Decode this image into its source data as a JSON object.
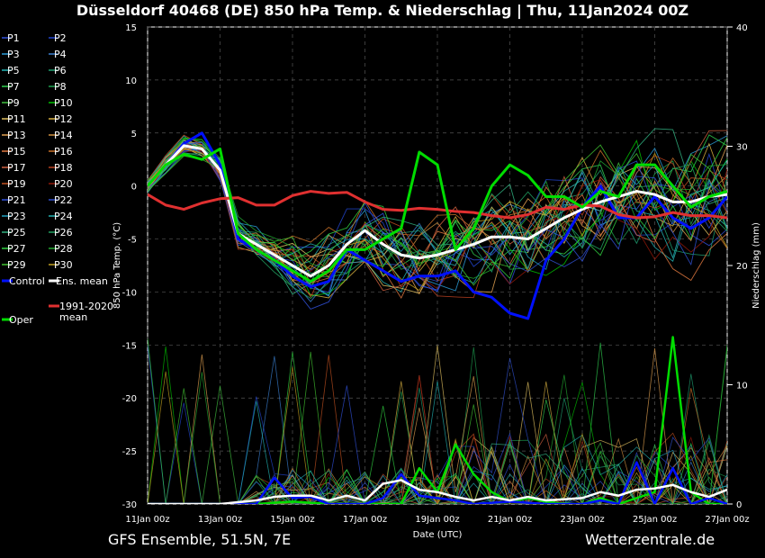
{
  "title": "Düsseldorf 40468 (DE)  850 hPa Temp. & Niederschlag | Thu, 11Jan2024 00Z",
  "footer_left": "GFS Ensemble, 51.5N, 7E",
  "footer_right": "Wetterzentrale.de",
  "colors": {
    "control": "#0010ff",
    "mean": "#ffffff",
    "clim": "#e03030",
    "oper": "#00dd00",
    "grid": "#555555"
  },
  "chart_data": {
    "type": "line",
    "title": "Düsseldorf 40468 (DE)  850 hPa Temp. & Niederschlag | Thu, 11Jan2024 00Z",
    "xlabel": "Date (UTC)",
    "ylabel": "850 hPa Temp. (°C)",
    "y2label": "Niederschlag (mm)",
    "xlim": [
      0,
      16
    ],
    "ylim": [
      -30,
      15
    ],
    "y2lim": [
      0,
      40
    ],
    "grid": true,
    "legend_position": "left",
    "x_ticks": [
      "11Jan 00z",
      "13Jan 00z",
      "15Jan 00z",
      "17Jan 00z",
      "19Jan 00z",
      "21Jan 00z",
      "23Jan 00z",
      "25Jan 00z",
      "27Jan 00z"
    ],
    "y_ticks": [
      "15",
      "10",
      "5",
      "0",
      "-5",
      "-10",
      "-15",
      "-20",
      "-25",
      "-30"
    ],
    "y2_ticks": [
      "40",
      "30",
      "20",
      "10",
      "0"
    ],
    "legend": [
      "P1",
      "P2",
      "P3",
      "P4",
      "P5",
      "P6",
      "P7",
      "P8",
      "P9",
      "P10",
      "P11",
      "P12",
      "P13",
      "P14",
      "P15",
      "P16",
      "P17",
      "P18",
      "P19",
      "P20",
      "P21",
      "P22",
      "P23",
      "P24",
      "P25",
      "P26",
      "P27",
      "P28",
      "P29",
      "P30",
      "Control",
      "Ens. mean",
      "1991-2020 mean",
      "Oper"
    ],
    "series": [
      {
        "name": "Control",
        "axis": "temp",
        "x": [
          0,
          0.5,
          1,
          1.5,
          2,
          2.5,
          3,
          3.5,
          4,
          4.5,
          5,
          5.5,
          6,
          6.5,
          7,
          7.5,
          8,
          8.5,
          9,
          9.5,
          10,
          10.5,
          11,
          11.5,
          12,
          12.5,
          13,
          13.5,
          14,
          14.5,
          15,
          15.5,
          16
        ],
        "values": [
          0,
          2,
          4,
          5,
          2,
          -5,
          -6,
          -7,
          -8.5,
          -9.5,
          -9,
          -6,
          -7,
          -8,
          -9,
          -8.5,
          -8.5,
          -8,
          -10,
          -10.5,
          -12,
          -12.5,
          -7,
          -5,
          -2,
          0,
          -3,
          -3,
          -1,
          -3,
          -4,
          -3,
          -1
        ]
      },
      {
        "name": "Ens. mean",
        "axis": "temp",
        "x": [
          0,
          0.5,
          1,
          1.5,
          2,
          2.5,
          3,
          3.5,
          4,
          4.5,
          5,
          5.5,
          6,
          6.5,
          7,
          7.5,
          8,
          8.5,
          9,
          9.5,
          10,
          10.5,
          11,
          11.5,
          12,
          12.5,
          13,
          13.5,
          14,
          14.5,
          15,
          15.5,
          16
        ],
        "values": [
          0,
          2,
          3.8,
          3.5,
          1.5,
          -4.5,
          -5.5,
          -6.5,
          -7.5,
          -8.5,
          -7.5,
          -5.5,
          -4.2,
          -5.5,
          -6.5,
          -6.8,
          -6.5,
          -6,
          -5.5,
          -4.8,
          -4.8,
          -5,
          -4,
          -3,
          -2.2,
          -1.5,
          -1,
          -0.5,
          -0.8,
          -1.5,
          -1.5,
          -1,
          -0.8
        ]
      },
      {
        "name": "1991-2020 mean",
        "axis": "temp",
        "x": [
          0,
          0.5,
          1,
          1.5,
          2,
          2.5,
          3,
          3.5,
          4,
          4.5,
          5,
          5.5,
          6,
          6.5,
          7,
          7.5,
          8,
          8.5,
          9,
          9.5,
          10,
          10.5,
          11,
          11.5,
          12,
          12.5,
          13,
          13.5,
          14,
          14.5,
          15,
          15.5,
          16
        ],
        "values": [
          -0.8,
          -1.8,
          -2.2,
          -1.6,
          -1.2,
          -1.1,
          -1.8,
          -1.8,
          -0.9,
          -0.5,
          -0.7,
          -0.6,
          -1.5,
          -2.2,
          -2.3,
          -2.1,
          -2.2,
          -2.4,
          -2.5,
          -2.8,
          -3,
          -2.7,
          -2,
          -2.2,
          -1.8,
          -1.9,
          -2.7,
          -3,
          -2.9,
          -2.5,
          -2.8,
          -2.8,
          -3
        ]
      },
      {
        "name": "Oper",
        "axis": "temp",
        "x": [
          0,
          0.5,
          1,
          1.5,
          2,
          2.5,
          3,
          3.5,
          4,
          4.5,
          5,
          5.5,
          6,
          6.5,
          7,
          7.5,
          8,
          8.5,
          9,
          9.5,
          10,
          10.5,
          11,
          11.5,
          12,
          12.5,
          13,
          13.5,
          14,
          14.5,
          15,
          15.5,
          16
        ],
        "values": [
          0,
          2,
          3,
          2.5,
          3.5,
          -4.5,
          -6,
          -7,
          -8,
          -9,
          -8,
          -6,
          -6,
          -5,
          -4,
          3.2,
          2,
          -6,
          -4,
          0,
          2,
          1,
          -1,
          -1,
          -2,
          -0.5,
          -1,
          2,
          2,
          0,
          -2,
          -1,
          -0.5
        ]
      },
      {
        "name": "Oper precipitation",
        "axis": "precip",
        "x": [
          0,
          1,
          2,
          3,
          4,
          5,
          6,
          7,
          7.5,
          8,
          8.5,
          9,
          9.5,
          10,
          10.5,
          11,
          11.5,
          12,
          12.5,
          13,
          13.5,
          14,
          14.5,
          15,
          15.5,
          16
        ],
        "values": [
          0,
          0,
          0,
          0,
          0.2,
          0,
          0,
          0,
          3,
          1,
          5,
          2.5,
          1,
          0.2,
          0.5,
          0.2,
          0,
          0,
          0.5,
          0,
          0.5,
          1,
          14,
          1,
          0,
          0
        ]
      },
      {
        "name": "Control precipitation",
        "axis": "precip",
        "x": [
          0,
          1,
          2,
          3,
          3.5,
          4,
          4.5,
          5,
          6,
          6.5,
          7,
          7.5,
          8,
          8.5,
          9,
          10,
          11,
          12,
          12.5,
          13,
          13.5,
          14,
          14.5,
          15,
          15.5,
          16
        ],
        "values": [
          0,
          0,
          0,
          0,
          2.2,
          0.5,
          0.6,
          0,
          0,
          0.5,
          2.5,
          0.7,
          0.5,
          0.3,
          0,
          0.2,
          0,
          0,
          0.3,
          0,
          3.5,
          0,
          3,
          0,
          0.5,
          0
        ]
      },
      {
        "name": "Ens. mean precipitation",
        "axis": "precip",
        "x": [
          0,
          1,
          2,
          3,
          3.5,
          4,
          4.5,
          5,
          5.5,
          6,
          6.5,
          7,
          7.5,
          8,
          8.5,
          9,
          9.5,
          10,
          10.5,
          11,
          11.5,
          12,
          12.5,
          13,
          13.5,
          14,
          14.5,
          15,
          15.5,
          16
        ],
        "values": [
          0,
          0,
          0,
          0.3,
          0.6,
          0.7,
          0.7,
          0.3,
          0.7,
          0.3,
          1.7,
          2,
          1.2,
          1,
          0.6,
          0.3,
          0.6,
          0.3,
          0.6,
          0.3,
          0.4,
          0.5,
          1,
          0.7,
          1.2,
          1.3,
          1.6,
          1,
          0.6,
          1.2
        ]
      }
    ],
    "member_colors": [
      "#2f4fd8",
      "#2244cc",
      "#2a9cd8",
      "#3a7fd0",
      "#22b4b4",
      "#1f9f70",
      "#30d050",
      "#1ea050",
      "#40c040",
      "#00c000",
      "#e0c060",
      "#d8b040",
      "#e0a050",
      "#d09040",
      "#e07840",
      "#c87028",
      "#d06040",
      "#b84020",
      "#c05020",
      "#901808",
      "#3050d8",
      "#2f4fcc",
      "#20a0c0",
      "#22b0b0",
      "#30b080",
      "#20a060",
      "#30d040",
      "#22a830",
      "#40c030",
      "#c0a020"
    ]
  }
}
